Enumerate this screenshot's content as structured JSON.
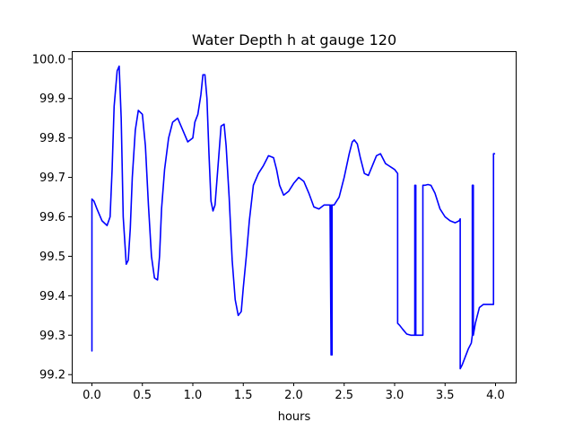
{
  "chart_data": {
    "type": "line",
    "title": "Water Depth h at gauge 120",
    "xlabel": "hours",
    "ylabel": "",
    "xlim": [
      -0.2,
      4.2
    ],
    "ylim": [
      99.18,
      100.02
    ],
    "xticks": [
      0.0,
      0.5,
      1.0,
      1.5,
      2.0,
      2.5,
      3.0,
      3.5,
      4.0
    ],
    "xtick_labels": [
      "0.0",
      "0.5",
      "1.0",
      "1.5",
      "2.0",
      "2.5",
      "3.0",
      "3.5",
      "4.0"
    ],
    "yticks": [
      99.2,
      99.3,
      99.4,
      99.5,
      99.6,
      99.7,
      99.8,
      99.9,
      100.0
    ],
    "ytick_labels": [
      "99.2",
      "99.3",
      "99.4",
      "99.5",
      "99.6",
      "99.7",
      "99.8",
      "99.9",
      "100.0"
    ],
    "grid": false,
    "legend": "none",
    "series": [
      {
        "color": "#0000ff",
        "x": [
          0.0,
          0.0,
          0.02,
          0.05,
          0.1,
          0.15,
          0.18,
          0.2,
          0.22,
          0.25,
          0.27,
          0.29,
          0.31,
          0.34,
          0.36,
          0.38,
          0.4,
          0.43,
          0.46,
          0.5,
          0.53,
          0.56,
          0.59,
          0.62,
          0.65,
          0.67,
          0.69,
          0.72,
          0.76,
          0.8,
          0.85,
          0.9,
          0.95,
          1.0,
          1.02,
          1.05,
          1.08,
          1.1,
          1.12,
          1.14,
          1.16,
          1.18,
          1.2,
          1.22,
          1.25,
          1.28,
          1.31,
          1.33,
          1.36,
          1.39,
          1.42,
          1.45,
          1.48,
          1.5,
          1.53,
          1.56,
          1.6,
          1.65,
          1.7,
          1.75,
          1.8,
          1.83,
          1.86,
          1.9,
          1.95,
          2.0,
          2.05,
          2.1,
          2.15,
          2.2,
          2.25,
          2.3,
          2.33,
          2.36,
          2.37,
          2.37,
          2.37,
          2.38,
          2.38,
          2.38,
          2.4,
          2.45,
          2.5,
          2.55,
          2.58,
          2.6,
          2.63,
          2.66,
          2.7,
          2.74,
          2.78,
          2.82,
          2.86,
          2.88,
          2.91,
          2.94,
          2.97,
          3.0,
          3.03,
          3.03,
          3.05,
          3.08,
          3.12,
          3.16,
          3.18,
          3.2,
          3.2,
          3.2,
          3.21,
          3.21,
          3.21,
          3.25,
          3.28,
          3.28,
          3.3,
          3.33,
          3.36,
          3.4,
          3.45,
          3.5,
          3.55,
          3.6,
          3.64,
          3.65,
          3.65,
          3.67,
          3.7,
          3.73,
          3.76,
          3.77,
          3.77,
          3.78,
          3.78,
          3.78,
          3.8,
          3.84,
          3.88,
          3.92,
          3.96,
          3.98,
          3.98,
          3.99
        ],
        "y": [
          99.26,
          99.645,
          99.64,
          99.62,
          99.59,
          99.578,
          99.6,
          99.72,
          99.88,
          99.97,
          99.982,
          99.85,
          99.6,
          99.48,
          99.49,
          99.57,
          99.7,
          99.82,
          99.87,
          99.86,
          99.78,
          99.63,
          99.5,
          99.445,
          99.44,
          99.5,
          99.62,
          99.72,
          99.8,
          99.84,
          99.85,
          99.82,
          99.79,
          99.8,
          99.84,
          99.86,
          99.91,
          99.96,
          99.96,
          99.9,
          99.76,
          99.64,
          99.615,
          99.63,
          99.73,
          99.83,
          99.835,
          99.78,
          99.65,
          99.49,
          99.39,
          99.35,
          99.36,
          99.42,
          99.5,
          99.59,
          99.68,
          99.71,
          99.73,
          99.755,
          99.75,
          99.72,
          99.68,
          99.655,
          99.665,
          99.685,
          99.7,
          99.69,
          99.66,
          99.625,
          99.62,
          99.63,
          99.63,
          99.63,
          99.25,
          99.63,
          99.25,
          99.25,
          99.63,
          99.63,
          99.63,
          99.65,
          99.7,
          99.76,
          99.79,
          99.795,
          99.785,
          99.75,
          99.71,
          99.705,
          99.73,
          99.755,
          99.76,
          99.75,
          99.735,
          99.73,
          99.725,
          99.72,
          99.71,
          99.33,
          99.325,
          99.315,
          99.303,
          99.3,
          99.3,
          99.3,
          99.68,
          99.3,
          99.3,
          99.68,
          99.3,
          99.3,
          99.3,
          99.68,
          99.68,
          99.682,
          99.68,
          99.66,
          99.62,
          99.6,
          99.59,
          99.585,
          99.59,
          99.595,
          99.215,
          99.225,
          99.245,
          99.265,
          99.28,
          99.3,
          99.68,
          99.68,
          99.3,
          99.3,
          99.33,
          99.37,
          99.378,
          99.378,
          99.378,
          99.378,
          99.76,
          99.76
        ]
      }
    ]
  }
}
